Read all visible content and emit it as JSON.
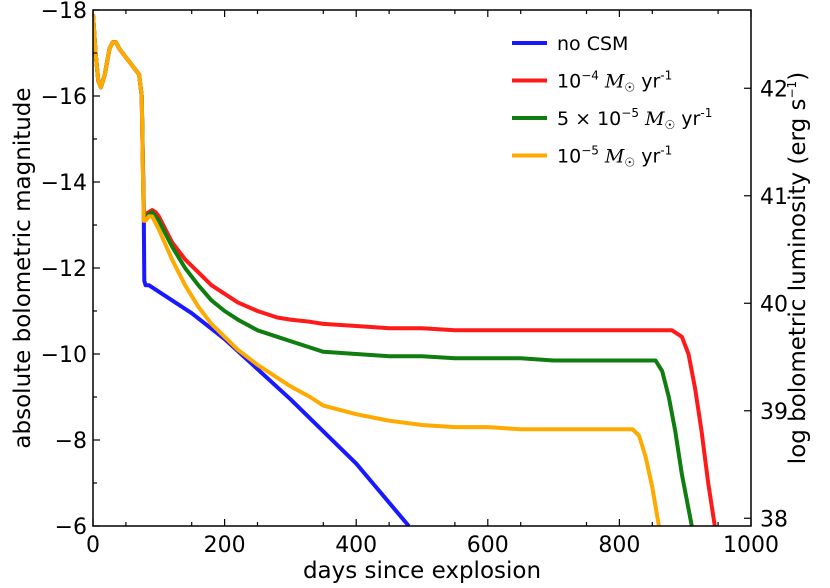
{
  "chart_data": {
    "type": "line",
    "xlabel": "days since explosion",
    "ylabel": "absolute bolometric magnitude",
    "y2label": "log bolometric luminosity (erg s",
    "y2label_sup": "−1",
    "y2label_tail": ")",
    "xlim": [
      0,
      1000
    ],
    "ylim": [
      -6,
      -18
    ],
    "x_ticks": [
      0,
      200,
      400,
      600,
      800,
      1000
    ],
    "x_tick_labels": [
      "0",
      "200",
      "400",
      "600",
      "800",
      "1000"
    ],
    "y_ticks": [
      -6,
      -8,
      -10,
      -12,
      -14,
      -16,
      -18
    ],
    "y_tick_labels": [
      "−6",
      "−8",
      "−10",
      "−12",
      "−14",
      "−16",
      "−18"
    ],
    "y2_ticks": [
      38,
      39,
      40,
      41,
      42
    ],
    "y2_tick_labels": [
      "38",
      "39",
      "40",
      "41",
      "42"
    ],
    "y2_tick_mags": [
      -6.18,
      -8.68,
      -11.18,
      -13.68,
      -16.18
    ],
    "legend_position": "top-right",
    "series": [
      {
        "name": "no CSM",
        "legend": {
          "pre": "no CSM",
          "mant": "",
          "exp": "",
          "mid": "",
          "sunexp": ""
        },
        "color": "#1919ff",
        "x": [
          0,
          4,
          8,
          12,
          18,
          25,
          30,
          35,
          40,
          50,
          60,
          70,
          74,
          77,
          78,
          80,
          85,
          100,
          150,
          200,
          300,
          400,
          480
        ],
        "y": [
          -17.9,
          -17.0,
          -16.35,
          -16.2,
          -16.5,
          -17.1,
          -17.25,
          -17.25,
          -17.1,
          -16.9,
          -16.7,
          -16.5,
          -16.0,
          -13.5,
          -11.7,
          -11.6,
          -11.6,
          -11.45,
          -10.95,
          -10.35,
          -8.95,
          -7.45,
          -6.0
        ]
      },
      {
        "name": "1e-4 Msun/yr",
        "legend": {
          "pre": "",
          "mant": "10",
          "exp": "−4",
          "mid": " M",
          "sunexp": "-1"
        },
        "color": "#ff1a1a",
        "x": [
          0,
          4,
          8,
          12,
          18,
          25,
          30,
          35,
          40,
          50,
          60,
          70,
          74,
          77,
          80,
          85,
          90,
          95,
          100,
          110,
          120,
          140,
          160,
          180,
          200,
          220,
          250,
          280,
          300,
          330,
          350,
          400,
          450,
          500,
          550,
          600,
          650,
          700,
          750,
          800,
          850,
          880,
          895,
          905,
          915,
          925,
          935,
          945
        ],
        "y": [
          -17.9,
          -17.0,
          -16.35,
          -16.2,
          -16.5,
          -17.1,
          -17.25,
          -17.25,
          -17.1,
          -16.9,
          -16.7,
          -16.5,
          -16.0,
          -13.3,
          -13.25,
          -13.3,
          -13.35,
          -13.3,
          -13.2,
          -12.9,
          -12.6,
          -12.2,
          -11.9,
          -11.6,
          -11.4,
          -11.2,
          -11.0,
          -10.85,
          -10.8,
          -10.75,
          -10.7,
          -10.65,
          -10.6,
          -10.6,
          -10.55,
          -10.55,
          -10.55,
          -10.55,
          -10.55,
          -10.55,
          -10.55,
          -10.55,
          -10.4,
          -10.0,
          -9.2,
          -8.2,
          -7.0,
          -6.0
        ]
      },
      {
        "name": "5e-5 Msun/yr",
        "legend": {
          "pre": "5 ×",
          "mant": "10",
          "exp": "−5",
          "mid": " M",
          "sunexp": "-1"
        },
        "color": "#0f7d0f",
        "x": [
          0,
          4,
          8,
          12,
          18,
          25,
          30,
          35,
          40,
          50,
          60,
          70,
          74,
          77,
          80,
          85,
          90,
          95,
          100,
          110,
          120,
          140,
          160,
          180,
          200,
          220,
          250,
          280,
          300,
          330,
          350,
          400,
          450,
          500,
          550,
          600,
          650,
          700,
          750,
          800,
          840,
          855,
          865,
          875,
          885,
          895,
          910
        ],
        "y": [
          -17.9,
          -17.0,
          -16.35,
          -16.2,
          -16.5,
          -17.1,
          -17.25,
          -17.25,
          -17.1,
          -16.9,
          -16.7,
          -16.5,
          -16.0,
          -13.2,
          -13.2,
          -13.25,
          -13.3,
          -13.2,
          -13.1,
          -12.8,
          -12.5,
          -12.0,
          -11.6,
          -11.25,
          -11.0,
          -10.8,
          -10.55,
          -10.4,
          -10.3,
          -10.15,
          -10.05,
          -10.0,
          -9.95,
          -9.95,
          -9.9,
          -9.9,
          -9.9,
          -9.85,
          -9.85,
          -9.85,
          -9.85,
          -9.85,
          -9.6,
          -9.0,
          -8.2,
          -7.2,
          -6.0
        ]
      },
      {
        "name": "1e-5 Msun/yr",
        "legend": {
          "pre": "",
          "mant": "10",
          "exp": "−5",
          "mid": " M",
          "sunexp": "-1"
        },
        "color": "#ffaa00",
        "x": [
          0,
          4,
          8,
          12,
          18,
          25,
          30,
          35,
          40,
          50,
          60,
          70,
          74,
          77,
          80,
          85,
          90,
          95,
          100,
          110,
          120,
          140,
          160,
          180,
          200,
          220,
          250,
          280,
          300,
          330,
          350,
          400,
          450,
          500,
          550,
          600,
          650,
          700,
          750,
          800,
          810,
          820,
          830,
          840,
          850,
          860
        ],
        "y": [
          -17.9,
          -17.0,
          -16.35,
          -16.2,
          -16.5,
          -17.1,
          -17.25,
          -17.25,
          -17.1,
          -16.9,
          -16.7,
          -16.5,
          -16.0,
          -13.1,
          -13.1,
          -13.2,
          -13.2,
          -13.05,
          -12.9,
          -12.55,
          -12.2,
          -11.6,
          -11.1,
          -10.7,
          -10.4,
          -10.1,
          -9.75,
          -9.45,
          -9.25,
          -9.0,
          -8.8,
          -8.6,
          -8.45,
          -8.35,
          -8.3,
          -8.3,
          -8.25,
          -8.25,
          -8.25,
          -8.25,
          -8.25,
          -8.25,
          -8.1,
          -7.6,
          -6.9,
          -6.0
        ]
      }
    ]
  }
}
